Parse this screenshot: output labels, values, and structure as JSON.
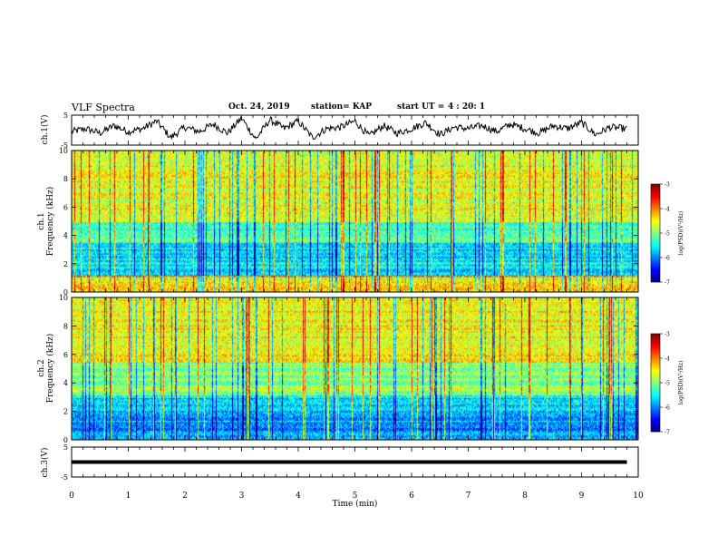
{
  "header": {
    "title": "VLF Spectra",
    "date": "Oct. 24, 2019",
    "station": "station= KAP",
    "start_label": "start  UT  =",
    "start_time": "4 : 20: 1"
  },
  "chart_data": [
    {
      "type": "line",
      "panel": "ch1-waveform",
      "ylabel": "ch.1(V)",
      "ylim": [
        -5,
        5
      ],
      "yticks": [
        "5",
        "-5"
      ],
      "x": [
        0,
        0.25,
        0.5,
        0.75,
        1.0,
        1.25,
        1.5,
        1.75,
        2.0,
        2.25,
        2.5,
        2.75,
        3.0,
        3.25,
        3.5,
        3.75,
        4.0,
        4.25,
        4.5,
        4.75,
        5.0,
        5.25,
        5.5,
        5.75,
        6.0,
        6.25,
        6.5,
        6.75,
        7.0,
        7.25,
        7.5,
        7.75,
        8.0,
        8.25,
        8.5,
        8.75,
        9.0,
        9.25,
        9.5,
        9.75
      ],
      "values": [
        -0.5,
        0.5,
        -1,
        1.5,
        -0.5,
        0.5,
        3,
        -2.5,
        1,
        -0.5,
        2,
        -1,
        4,
        -3,
        3.5,
        0.5,
        3,
        -2.5,
        0.5,
        1,
        3,
        -2,
        1.5,
        -1,
        0.5,
        2.5,
        -1.5,
        1,
        0.5,
        1.5,
        -0.5,
        2,
        0.5,
        -1,
        1.5,
        0.5,
        2.5,
        -1.5,
        1,
        0.5
      ]
    },
    {
      "type": "heatmap",
      "panel": "ch1-spectrogram",
      "ylabel": "ch.1 Frequency  (kHz)",
      "ylim": [
        0,
        10
      ],
      "yticks": [
        "0",
        "2",
        "4",
        "6",
        "8",
        "10"
      ],
      "xlim": [
        0,
        10
      ],
      "colorbar": {
        "label": "log(PSD)(V²/Hz)",
        "min": -7,
        "max": -3,
        "ticks": [
          "-3",
          "-4",
          "-5",
          "-6",
          "-7"
        ]
      }
    },
    {
      "type": "heatmap",
      "panel": "ch2-spectrogram",
      "ylabel": "ch.2 Frequency  (kHz)",
      "ylim": [
        0,
        10
      ],
      "yticks": [
        "0",
        "2",
        "4",
        "6",
        "8",
        "10"
      ],
      "xlim": [
        0,
        10
      ],
      "colorbar": {
        "label": "log(PSD)(V²/Hz)",
        "min": -7,
        "max": -3,
        "ticks": [
          "-3",
          "-4",
          "-5",
          "-6",
          "-7"
        ]
      }
    },
    {
      "type": "line",
      "panel": "ch3-waveform",
      "ylabel": "ch.3(V)",
      "ylim": [
        -5,
        5
      ],
      "yticks": [
        "5",
        "-5"
      ],
      "x": [
        0,
        9.8
      ],
      "values": [
        0,
        0
      ]
    }
  ],
  "xaxis": {
    "label": "Time  (min)",
    "ticks": [
      "0",
      "1",
      "2",
      "3",
      "4",
      "5",
      "6",
      "7",
      "8",
      "9",
      "10"
    ],
    "xlim": [
      0,
      10
    ]
  }
}
